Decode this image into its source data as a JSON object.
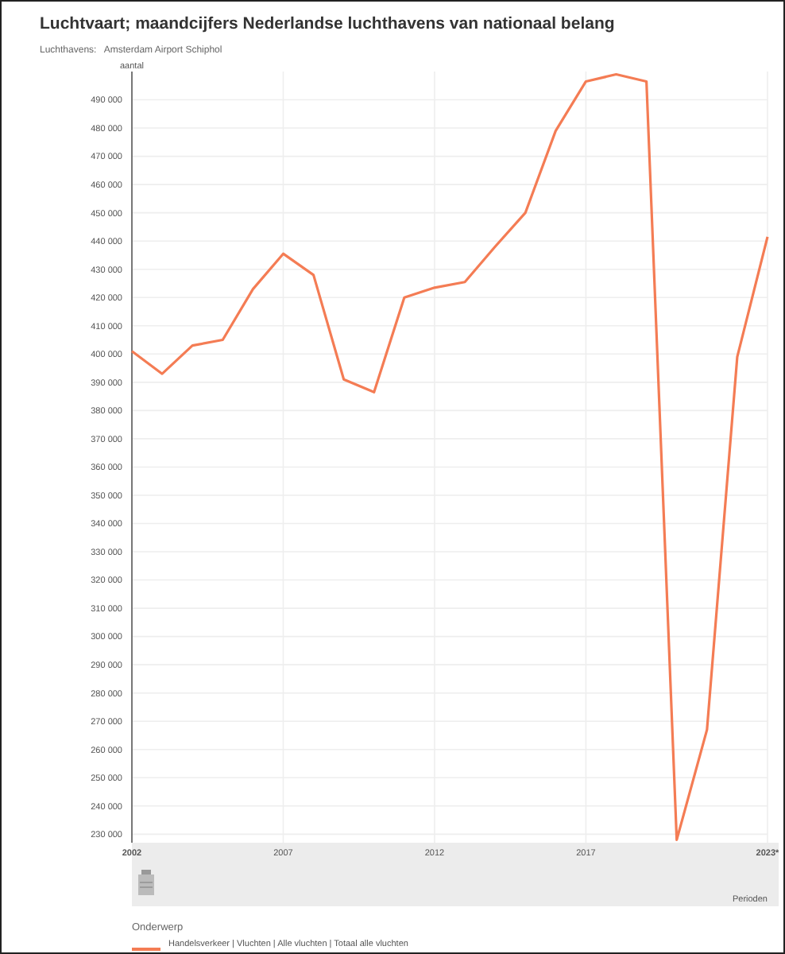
{
  "chart_data": {
    "type": "line",
    "title": "Luchtvaart; maandcijfers Nederlandse luchthavens van nationaal belang",
    "subtitle": "Luchthavens:   Amsterdam Airport Schiphol",
    "ylabel": "aantal",
    "xlabel": "Perioden",
    "legend_title": "Onderwerp",
    "x": [
      2002,
      2003,
      2004,
      2005,
      2006,
      2007,
      2008,
      2009,
      2010,
      2011,
      2012,
      2013,
      2014,
      2015,
      2016,
      2017,
      2018,
      2019,
      2020,
      2021,
      2022,
      2023
    ],
    "series": [
      {
        "name": "Handelsverkeer | Vluchten | Alle vluchten | Totaal alle vluchten",
        "color": "#f47c54",
        "values": [
          401000,
          393000,
          403000,
          405000,
          423000,
          435500,
          428000,
          391000,
          386500,
          420000,
          423500,
          425500,
          438000,
          450000,
          479000,
          496500,
          499000,
          496500,
          228000,
          267000,
          399000,
          441500
        ]
      }
    ],
    "xlim": [
      2002,
      2023
    ],
    "xticks": [
      2002,
      2007,
      2012,
      2017,
      {
        "value": 2023,
        "label": "2023*"
      }
    ],
    "ylim": [
      227000,
      500000
    ],
    "yticks": [
      {
        "value": 230000,
        "label": "230 000"
      },
      {
        "value": 240000,
        "label": "240 000"
      },
      {
        "value": 250000,
        "label": "250 000"
      },
      {
        "value": 260000,
        "label": "260 000"
      },
      {
        "value": 270000,
        "label": "270 000"
      },
      {
        "value": 280000,
        "label": "280 000"
      },
      {
        "value": 290000,
        "label": "290 000"
      },
      {
        "value": 300000,
        "label": "300 000"
      },
      {
        "value": 310000,
        "label": "310 000"
      },
      {
        "value": 320000,
        "label": "320 000"
      },
      {
        "value": 330000,
        "label": "330 000"
      },
      {
        "value": 340000,
        "label": "340 000"
      },
      {
        "value": 350000,
        "label": "350 000"
      },
      {
        "value": 360000,
        "label": "360 000"
      },
      {
        "value": 370000,
        "label": "370 000"
      },
      {
        "value": 380000,
        "label": "380 000"
      },
      {
        "value": 390000,
        "label": "390 000"
      },
      {
        "value": 400000,
        "label": "400 000"
      },
      {
        "value": 410000,
        "label": "410 000"
      },
      {
        "value": 420000,
        "label": "420 000"
      },
      {
        "value": 430000,
        "label": "430 000"
      },
      {
        "value": 440000,
        "label": "440 000"
      },
      {
        "value": 450000,
        "label": "450 000"
      },
      {
        "value": 460000,
        "label": "460 000"
      },
      {
        "value": 470000,
        "label": "470 000"
      },
      {
        "value": 480000,
        "label": "480 000"
      },
      {
        "value": 490000,
        "label": "490 000"
      }
    ],
    "grid": true,
    "legend": "bottom",
    "marker": "none",
    "line_style": "solid"
  }
}
